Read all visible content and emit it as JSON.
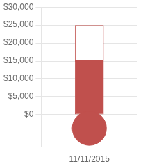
{
  "chart_data": {
    "type": "bar",
    "categories": [
      "11/11/2015"
    ],
    "values": [
      15000
    ],
    "goal": [
      25000
    ],
    "color": "#c0504d",
    "ylim": [
      -9000,
      30000
    ],
    "yticks": [
      {
        "value": 0,
        "label": "$0"
      },
      {
        "value": 5000,
        "label": "$5,000"
      },
      {
        "value": 10000,
        "label": "$10,000"
      },
      {
        "value": 15000,
        "label": "$15,000"
      },
      {
        "value": 20000,
        "label": "$20,000"
      },
      {
        "value": 25000,
        "label": "$25,000"
      },
      {
        "value": 30000,
        "label": "$30,000"
      }
    ],
    "grid": true
  }
}
